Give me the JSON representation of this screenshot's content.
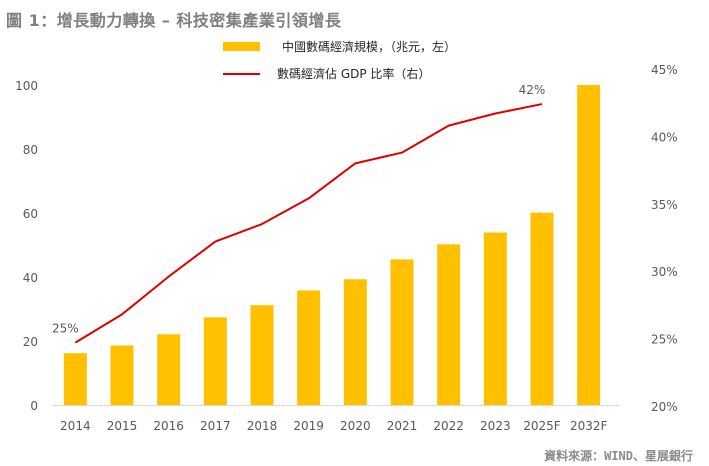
{
  "title": "圖 1：增長動力轉換 – 科技密集產業引領增長",
  "source": "資料來源：WIND、星展銀行",
  "colors": {
    "bar": "#FFC000",
    "line": "#E00000",
    "axis": "#D9D9D9",
    "text": "#595959"
  },
  "chart_data": {
    "type": "bar",
    "title": "圖 1：增長動力轉換 – 科技密集產業引領增長",
    "categories": [
      "2014",
      "2015",
      "2016",
      "2017",
      "2018",
      "2019",
      "2020",
      "2021",
      "2022",
      "2023",
      "2025F",
      "2032F"
    ],
    "series": [
      {
        "name": "中國數碼經濟規模，（兆元，左）",
        "type": "bar",
        "axis": "left",
        "values": [
          16.2,
          18.6,
          22.1,
          27.4,
          31.2,
          35.8,
          39.3,
          45.5,
          50.2,
          53.9,
          60.1,
          100
        ]
      },
      {
        "name": "數碼經濟佔 GDP 比率（右）",
        "type": "line",
        "axis": "right",
        "values": [
          24.7,
          26.8,
          29.6,
          32.2,
          33.5,
          35.4,
          38.0,
          38.8,
          40.8,
          41.7,
          42.4,
          null
        ]
      }
    ],
    "annotations": [
      {
        "category": "2014",
        "series": 1,
        "text": "25%"
      },
      {
        "category": "2025F",
        "series": 1,
        "text": "42%"
      }
    ],
    "left_axis": {
      "ylim": [
        0,
        100
      ],
      "ticks": [
        "0",
        "20",
        "40",
        "60",
        "80",
        "100"
      ],
      "tick_values": [
        0,
        20,
        40,
        60,
        80,
        100
      ]
    },
    "right_axis": {
      "ylim": [
        20,
        45
      ],
      "ticks": [
        "20%",
        "25%",
        "30%",
        "35%",
        "40%",
        "45%"
      ],
      "tick_values": [
        20,
        25,
        30,
        35,
        40,
        45
      ]
    },
    "xlabel": "",
    "ylabel": "",
    "grid": false,
    "legend": {
      "position": "top-center"
    }
  }
}
